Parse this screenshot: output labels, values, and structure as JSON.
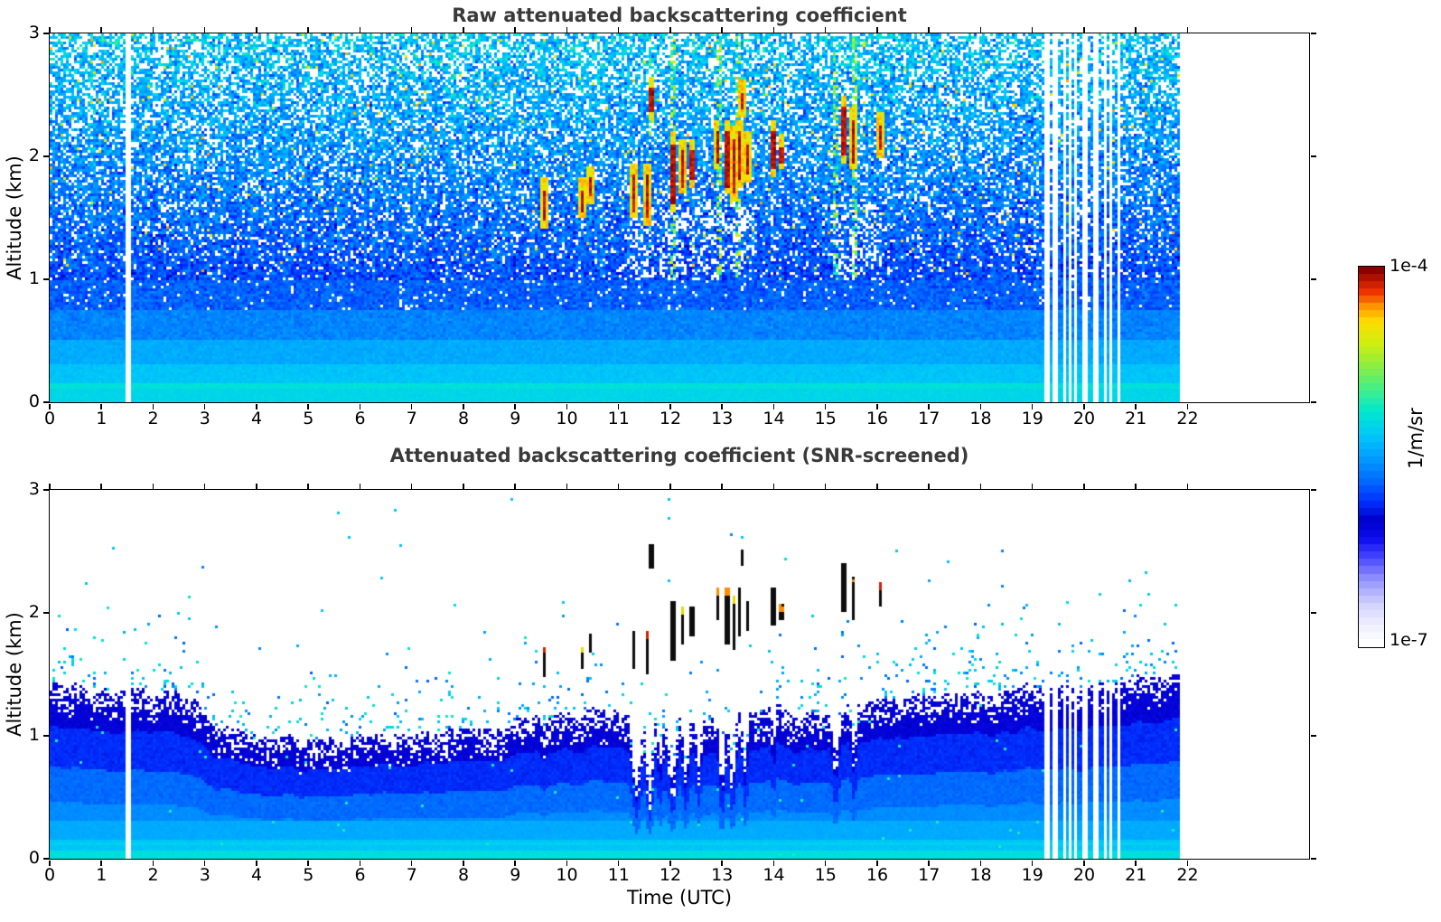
{
  "chart_data": {
    "type": "heatmap",
    "panels": [
      {
        "id": "raw",
        "title": "Raw attenuated backscattering coefficient"
      },
      {
        "id": "screened",
        "title": "Attenuated backscattering coefficient (SNR-screened)"
      }
    ],
    "xlabel": "Time (UTC)",
    "ylabel": "Altitude (km)",
    "x_range": [
      0,
      24.35
    ],
    "y_range": [
      0,
      3
    ],
    "xticks": [
      0,
      1,
      2,
      3,
      4,
      5,
      6,
      7,
      8,
      9,
      10,
      11,
      12,
      13,
      14,
      15,
      16,
      17,
      18,
      19,
      20,
      21,
      22
    ],
    "xtick_labels": [
      "0",
      "1",
      "2",
      "3",
      "4",
      "5",
      "6",
      "7",
      "8",
      "9",
      "10",
      "11",
      "12",
      "13",
      "14",
      "15",
      "16",
      "17",
      "18",
      "19",
      "20",
      "21",
      "22"
    ],
    "yticks": [
      0,
      1,
      2,
      3
    ],
    "ytick_labels": [
      "0",
      "1",
      "2",
      "3"
    ],
    "data_end_hour": 21.85,
    "colorbar": {
      "label": "1/m/sr",
      "max_label": "1e-4",
      "min_label": "1e-7",
      "scale": "log",
      "bands": 52
    },
    "colormap_stops": [
      [
        0.0,
        "#ffffff"
      ],
      [
        0.05,
        "#eeeeff"
      ],
      [
        0.1,
        "#d4d4ff"
      ],
      [
        0.14,
        "#b0b0ff"
      ],
      [
        0.18,
        "#8888ff"
      ],
      [
        0.23,
        "#4444ff"
      ],
      [
        0.28,
        "#0c0cee"
      ],
      [
        0.33,
        "#0000cc"
      ],
      [
        0.38,
        "#0030ff"
      ],
      [
        0.44,
        "#0070ff"
      ],
      [
        0.5,
        "#00a0ff"
      ],
      [
        0.56,
        "#00c8f8"
      ],
      [
        0.62,
        "#00e8d0"
      ],
      [
        0.68,
        "#44ee88"
      ],
      [
        0.74,
        "#88ee44"
      ],
      [
        0.8,
        "#ccee11"
      ],
      [
        0.86,
        "#ffdd00"
      ],
      [
        0.9,
        "#ff9900"
      ],
      [
        0.94,
        "#f03300"
      ],
      [
        1.0,
        "#8b0000"
      ]
    ],
    "data_gaps_hours": [
      [
        1.45,
        1.58
      ],
      [
        19.25,
        19.32
      ],
      [
        19.41,
        19.47
      ],
      [
        19.62,
        19.67
      ],
      [
        19.7,
        19.75
      ],
      [
        19.81,
        19.86
      ],
      [
        19.98,
        20.05
      ],
      [
        20.19,
        20.26
      ],
      [
        20.38,
        20.44
      ],
      [
        20.49,
        20.54
      ],
      [
        20.66,
        20.72
      ]
    ],
    "cloud_streaks": [
      {
        "t": 9.55,
        "alt_bottom": 1.48,
        "alt_top": 1.72,
        "tip": "red"
      },
      {
        "t": 10.3,
        "alt_bottom": 1.55,
        "alt_top": 1.72,
        "tip": "yellow"
      },
      {
        "t": 10.45,
        "alt_bottom": 1.68,
        "alt_top": 1.82,
        "tip": null
      },
      {
        "t": 11.3,
        "alt_bottom": 1.55,
        "alt_top": 1.85,
        "tip": null
      },
      {
        "t": 11.55,
        "alt_bottom": 1.5,
        "alt_top": 1.85,
        "tip": "red",
        "glow": true
      },
      {
        "t": 11.63,
        "alt_bottom": 2.35,
        "alt_top": 2.55,
        "tip": null
      },
      {
        "t": 12.05,
        "alt_bottom": 1.6,
        "alt_top": 2.1,
        "tip": null,
        "glow": true
      },
      {
        "t": 12.25,
        "alt_bottom": 1.75,
        "alt_top": 2.05,
        "tip": "yellow"
      },
      {
        "t": 12.42,
        "alt_bottom": 1.8,
        "alt_top": 2.05,
        "tip": null
      },
      {
        "t": 12.9,
        "alt_bottom": 1.95,
        "alt_top": 2.2,
        "tip": "orange"
      },
      {
        "t": 13.1,
        "alt_bottom": 1.75,
        "alt_top": 2.2,
        "tip": "orange",
        "glow": true
      },
      {
        "t": 13.22,
        "alt_bottom": 1.7,
        "alt_top": 2.15,
        "tip": "yellow"
      },
      {
        "t": 13.35,
        "alt_bottom": 1.8,
        "alt_top": 2.2,
        "tip": null
      },
      {
        "t": 13.4,
        "alt_bottom": 2.38,
        "alt_top": 2.52,
        "tip": null
      },
      {
        "t": 13.5,
        "alt_bottom": 1.85,
        "alt_top": 2.1,
        "tip": null
      },
      {
        "t": 14.0,
        "alt_bottom": 1.9,
        "alt_top": 2.2,
        "tip": null
      },
      {
        "t": 14.15,
        "alt_bottom": 1.95,
        "alt_top": 2.08,
        "tip": "orange"
      },
      {
        "t": 15.35,
        "alt_bottom": 2.0,
        "alt_top": 2.4,
        "tip": null,
        "glow": true
      },
      {
        "t": 15.55,
        "alt_bottom": 1.95,
        "alt_top": 2.3,
        "tip": "orange"
      },
      {
        "t": 16.05,
        "alt_bottom": 2.05,
        "alt_top": 2.25,
        "tip": "red"
      }
    ],
    "tip_colors": {
      "red": "#d42000",
      "orange": "#ff8c00",
      "yellow": "#e8dc00"
    },
    "boundary_layer_km": [
      [
        0,
        1.42
      ],
      [
        1,
        1.4
      ],
      [
        2,
        1.4
      ],
      [
        2.6,
        1.35
      ],
      [
        3.2,
        1.12
      ],
      [
        4,
        0.98
      ],
      [
        5,
        0.96
      ],
      [
        6,
        1.0
      ],
      [
        7,
        1.03
      ],
      [
        8,
        1.06
      ],
      [
        9,
        1.12
      ],
      [
        10,
        1.16
      ],
      [
        11,
        1.18
      ],
      [
        12,
        1.12
      ],
      [
        13,
        1.18
      ],
      [
        14,
        1.22
      ],
      [
        15,
        1.18
      ],
      [
        16,
        1.26
      ],
      [
        17,
        1.32
      ],
      [
        18,
        1.36
      ],
      [
        19,
        1.4
      ],
      [
        20,
        1.42
      ],
      [
        21,
        1.46
      ],
      [
        21.85,
        1.52
      ]
    ],
    "attenuation_notches": [
      {
        "t": 9.55,
        "down_to_km": 1.05,
        "width_hr": 0.1
      },
      {
        "t": 11.35,
        "down_to_km": 0.6,
        "width_hr": 0.14
      },
      {
        "t": 11.6,
        "down_to_km": 0.55,
        "width_hr": 0.12
      },
      {
        "t": 11.8,
        "down_to_km": 0.8,
        "width_hr": 0.08
      },
      {
        "t": 12.05,
        "down_to_km": 0.62,
        "width_hr": 0.12
      },
      {
        "t": 12.3,
        "down_to_km": 0.7,
        "width_hr": 0.1
      },
      {
        "t": 12.55,
        "down_to_km": 0.8,
        "width_hr": 0.08
      },
      {
        "t": 13.0,
        "down_to_km": 0.62,
        "width_hr": 0.1
      },
      {
        "t": 13.2,
        "down_to_km": 0.68,
        "width_hr": 0.1
      },
      {
        "t": 13.45,
        "down_to_km": 0.75,
        "width_hr": 0.08
      },
      {
        "t": 14.0,
        "down_to_km": 0.95,
        "width_hr": 0.06
      },
      {
        "t": 15.2,
        "down_to_km": 0.78,
        "width_hr": 0.1
      },
      {
        "t": 15.55,
        "down_to_km": 0.88,
        "width_hr": 0.08
      }
    ],
    "bright_columns_hours": [
      11.6,
      12.05,
      12.95,
      13.3,
      15.2,
      15.55
    ],
    "shadow_ranges_hours": [
      [
        11.2,
        13.6
      ],
      [
        15.1,
        16.1
      ]
    ],
    "styles": {
      "background": "#ffffff",
      "title_color": "#3a3a3a",
      "tick_color": "#000000",
      "cloud_core_color": "#0d0d0d"
    }
  }
}
